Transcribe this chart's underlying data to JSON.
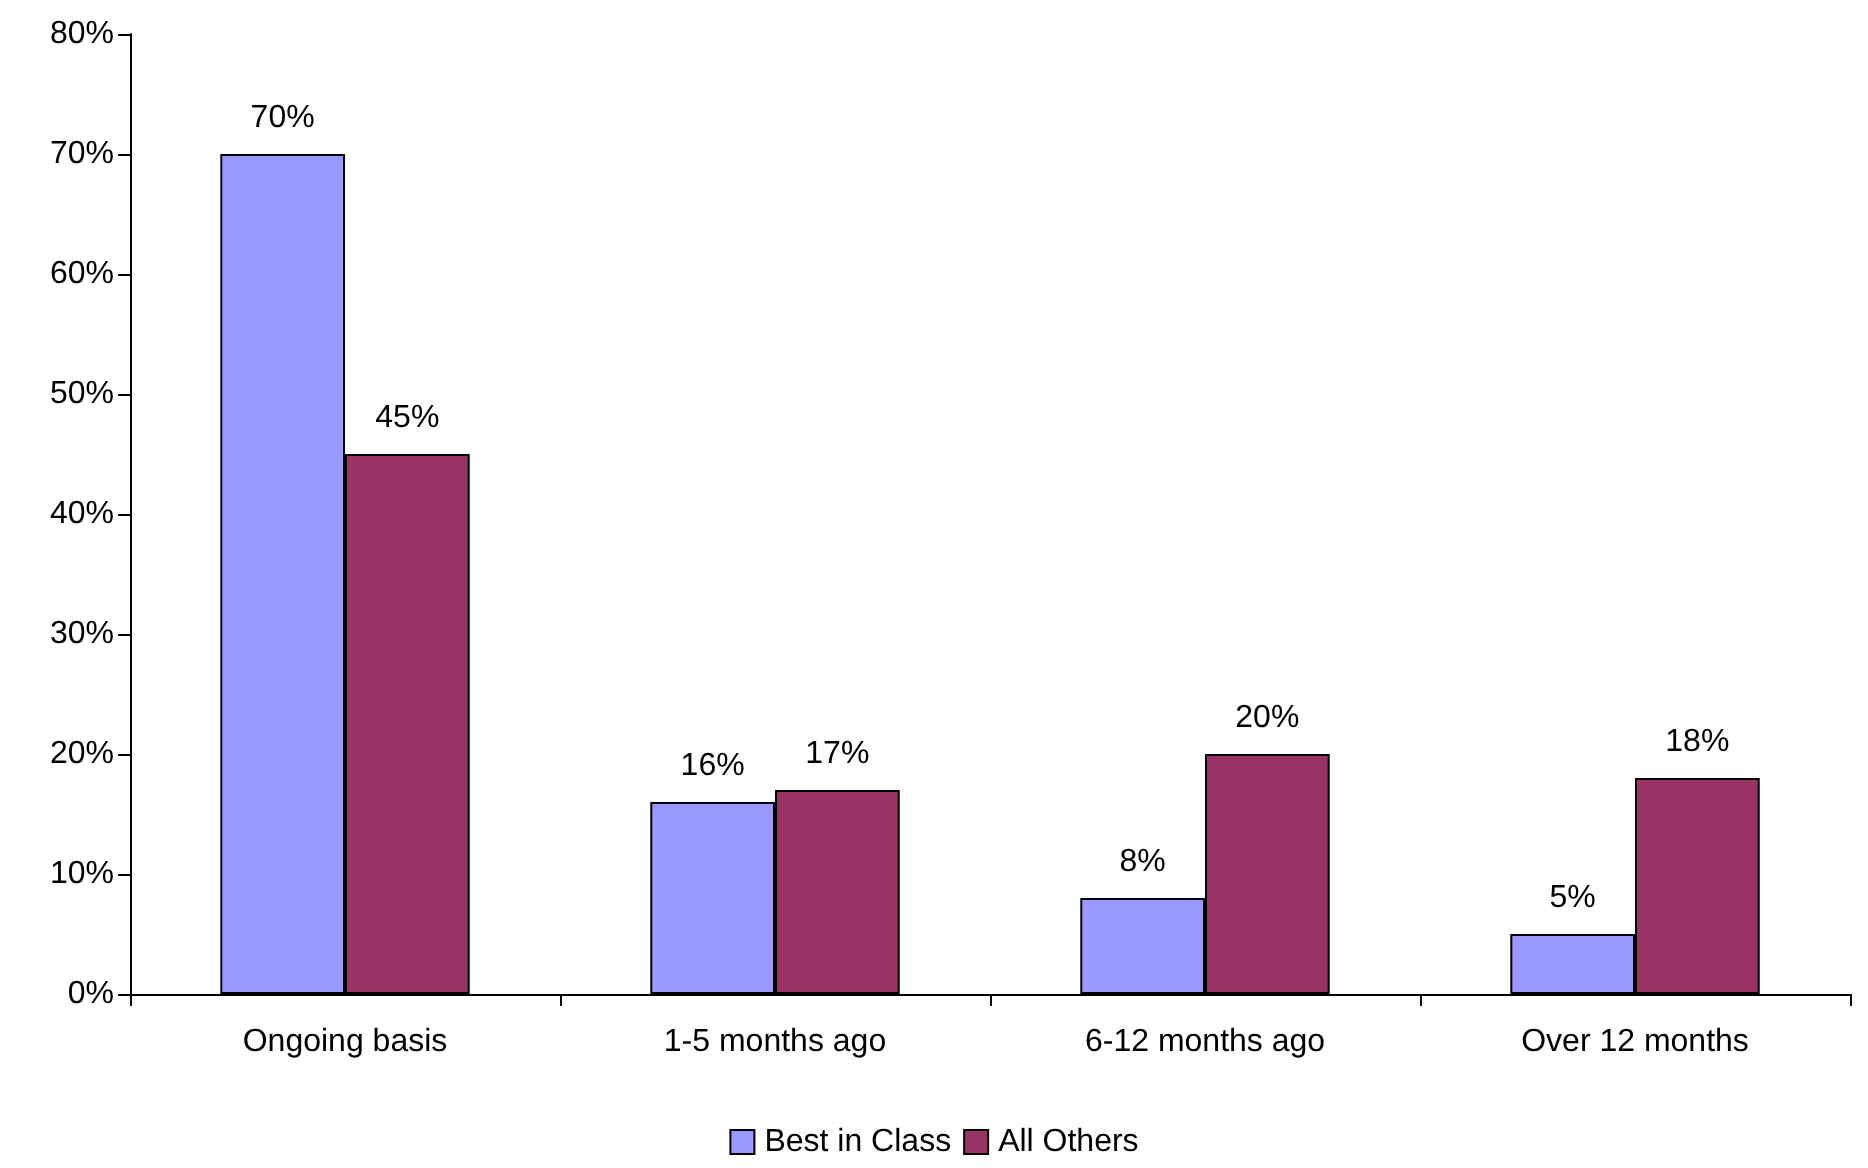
{
  "chart_data": {
    "type": "bar",
    "categories": [
      "Ongoing basis",
      "1-5 months ago",
      "6-12 months ago",
      "Over 12 months"
    ],
    "series": [
      {
        "name": "Best in Class",
        "color": "#9999ff",
        "values": [
          70,
          16,
          8,
          5
        ],
        "value_labels": [
          "70%",
          "16%",
          "8%",
          "5%"
        ]
      },
      {
        "name": "All Others",
        "color": "#993366",
        "values": [
          45,
          17,
          20,
          18
        ],
        "value_labels": [
          "45%",
          "17%",
          "20%",
          "18%"
        ]
      }
    ],
    "ylim": [
      0,
      80
    ],
    "yticks": [
      {
        "value": 0,
        "label": "0%"
      },
      {
        "value": 10,
        "label": "10%"
      },
      {
        "value": 20,
        "label": "20%"
      },
      {
        "value": 30,
        "label": "30%"
      },
      {
        "value": 40,
        "label": "40%"
      },
      {
        "value": 50,
        "label": "50%"
      },
      {
        "value": 60,
        "label": "60%"
      },
      {
        "value": 70,
        "label": "70%"
      },
      {
        "value": 80,
        "label": "80%"
      }
    ],
    "grid": false,
    "legend": "bottom"
  }
}
